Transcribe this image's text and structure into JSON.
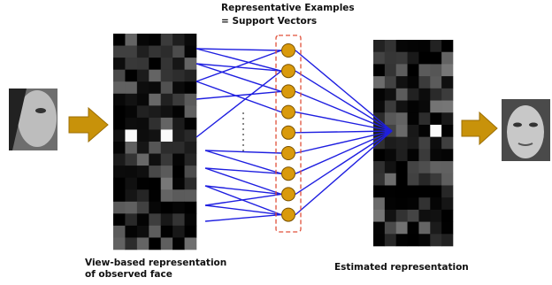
{
  "title": {
    "lines": [
      "Representative Examples",
      "= Support Vectors"
    ]
  },
  "labels": {
    "input": [
      "View-based representation",
      "of observed face"
    ],
    "output": [
      "Estimated representation"
    ]
  }
}
